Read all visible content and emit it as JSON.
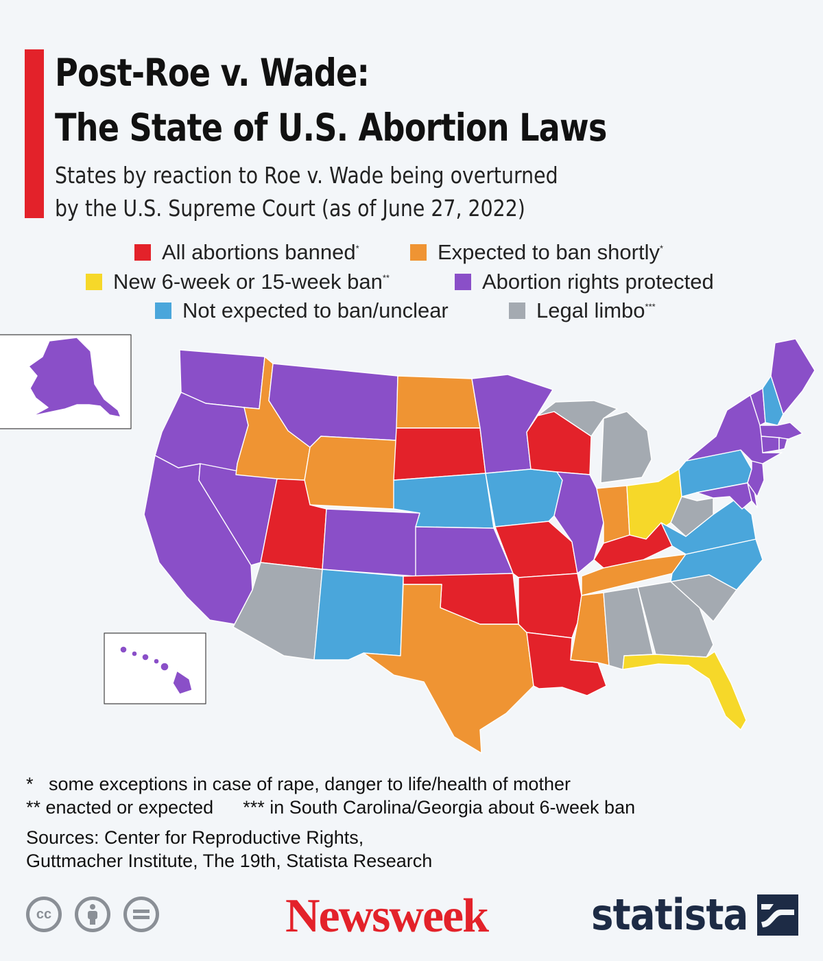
{
  "header": {
    "title_line1": "Post-Roe v. Wade:",
    "title_line2": "The State of U.S. Abortion Laws",
    "subtitle_line1": "States by reaction to Roe v. Wade being overturned",
    "subtitle_line2": "by the U.S. Supreme Court (as of June 27, 2022)"
  },
  "legend": {
    "banned": {
      "label": "All abortions banned",
      "mark": "*",
      "color": "#e3222a"
    },
    "expected": {
      "label": "Expected to ban shortly",
      "mark": "*",
      "color": "#ef9433"
    },
    "new_ban": {
      "label": "New 6-week or 15-week ban",
      "mark": "**",
      "color": "#f6d829"
    },
    "protected": {
      "label": "Abortion rights protected",
      "mark": "",
      "color": "#8a4fc8"
    },
    "unclear": {
      "label": "Not expected to ban/unclear",
      "mark": "",
      "color": "#4aa6db"
    },
    "limbo": {
      "label": "Legal limbo",
      "mark": "***",
      "color": "#a4aab1"
    }
  },
  "states": {
    "banned": [
      "Wisconsin",
      "South Dakota",
      "Utah",
      "Missouri",
      "Kentucky",
      "Arkansas",
      "Louisiana",
      "Oklahoma"
    ],
    "expected": [
      "Idaho",
      "Wyoming",
      "North Dakota",
      "Texas",
      "Tennessee",
      "Mississippi",
      "Indiana"
    ],
    "new_ban": [
      "Ohio",
      "Florida"
    ],
    "protected": [
      "Washington",
      "Oregon",
      "California",
      "Nevada",
      "Montana",
      "Colorado",
      "Kansas",
      "Minnesota",
      "Illinois",
      "New York",
      "Vermont",
      "Maine",
      "Massachusetts",
      "Connecticut",
      "Rhode Island",
      "New Jersey",
      "Delaware",
      "Maryland",
      "Alaska",
      "Hawaii"
    ],
    "unclear": [
      "Nebraska",
      "Iowa",
      "New Mexico",
      "Pennsylvania",
      "Virginia",
      "North Carolina",
      "New Hampshire"
    ],
    "limbo": [
      "Arizona",
      "Michigan",
      "West Virginia",
      "Alabama",
      "Georgia",
      "South Carolina"
    ]
  },
  "footnotes": {
    "note1_mark": "*",
    "note1": "some exceptions in case of rape, danger to life/health of mother",
    "note2": "** enacted or expected",
    "note3": "*** in South Carolina/Georgia about 6-week ban",
    "sources1": "Sources: Center for Reproductive Rights,",
    "sources2": "Guttmacher Institute, The 19th, Statista Research"
  },
  "footer": {
    "license_icons": [
      "cc-icon",
      "attribution-icon",
      "no-derivatives-icon"
    ],
    "cc_text": "cc",
    "newsweek": "Newsweek",
    "statista": "statista"
  }
}
